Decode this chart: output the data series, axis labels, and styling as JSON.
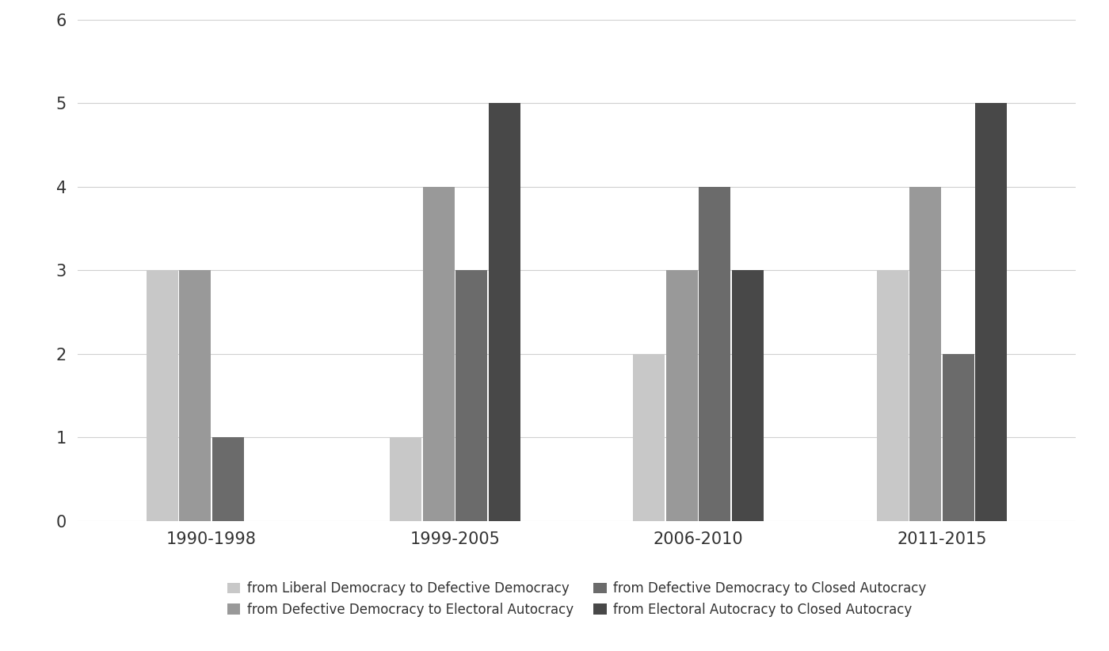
{
  "categories": [
    "1990-1998",
    "1999-2005",
    "2006-2010",
    "2011-2015"
  ],
  "series": {
    "from Liberal Democracy to Defective Democracy": [
      3,
      1,
      2,
      3
    ],
    "from Defective Democracy to Electoral Autocracy": [
      3,
      4,
      3,
      4
    ],
    "from Defective Democracy to Closed Autocracy": [
      1,
      3,
      4,
      2
    ],
    "from Electoral Autocracy to Closed Autocracy": [
      0,
      5,
      3,
      5
    ]
  },
  "colors": {
    "from Liberal Democracy to Defective Democracy": "#c8c8c8",
    "from Defective Democracy to Electoral Autocracy": "#999999",
    "from Defective Democracy to Closed Autocracy": "#6b6b6b",
    "from Electoral Autocracy to Closed Autocracy": "#484848"
  },
  "ylim": [
    0,
    6
  ],
  "yticks": [
    0,
    1,
    2,
    3,
    4,
    5,
    6
  ],
  "background_color": "#ffffff",
  "grid_color": "#d0d0d0",
  "bar_width": 0.13,
  "figsize": [
    14.0,
    8.22
  ],
  "dpi": 100,
  "legend_order": [
    "from Liberal Democracy to Defective Democracy",
    "from Defective Democracy to Electoral Autocracy",
    "from Defective Democracy to Closed Autocracy",
    "from Electoral Autocracy to Closed Autocracy"
  ]
}
